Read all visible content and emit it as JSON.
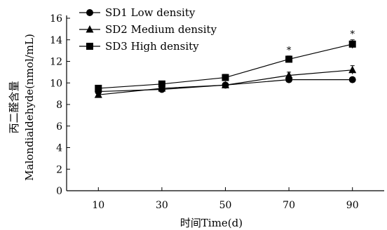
{
  "chart_data": {
    "type": "line",
    "x": [
      10,
      30,
      50,
      70,
      90
    ],
    "xlim": [
      0,
      100
    ],
    "ylim": [
      0,
      16
    ],
    "yticks": [
      0,
      2,
      4,
      6,
      8,
      10,
      12,
      14,
      16
    ],
    "xlabel": "时间Time(d)",
    "ylabel_cn": "丙二醛含量",
    "ylabel_en": "Malondialdehyde(nmol/mL)",
    "legend_position": "top-left",
    "grid": false,
    "series": [
      {
        "name": "SD1 Low density",
        "marker": "circle",
        "values": [
          9.2,
          9.4,
          9.8,
          10.3,
          10.3
        ],
        "errors": [
          0.2,
          0.2,
          0.2,
          0.2,
          0.2
        ]
      },
      {
        "name": "SD2 Medium density",
        "marker": "triangle",
        "values": [
          8.9,
          9.5,
          9.8,
          10.7,
          11.2
        ],
        "errors": [
          0.2,
          0.2,
          0.2,
          0.3,
          0.4
        ]
      },
      {
        "name": "SD3 High density",
        "marker": "square",
        "values": [
          9.5,
          9.9,
          10.5,
          12.2,
          13.6
        ],
        "errors": [
          0.2,
          0.2,
          0.3,
          0.3,
          0.4
        ]
      }
    ],
    "annotations": [
      {
        "text": "*",
        "x": 70,
        "y": 13.0
      },
      {
        "text": "*",
        "x": 90,
        "y": 14.5
      }
    ]
  }
}
